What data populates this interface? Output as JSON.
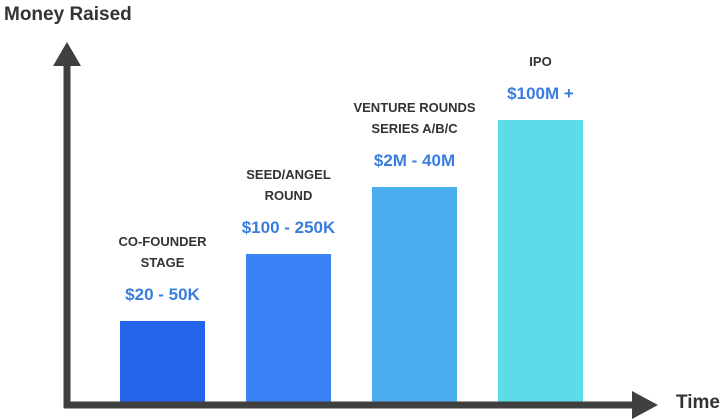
{
  "chart_data": {
    "type": "bar",
    "ylabel": "Money Raised",
    "xlabel": "Time",
    "grid": false,
    "legend": "none",
    "categories": [
      [
        "CO-FOUNDER",
        "STAGE"
      ],
      [
        "SEED/ANGEL",
        "ROUND"
      ],
      [
        "VENTURE ROUNDS",
        "SERIES A/B/C"
      ],
      [
        "IPO"
      ]
    ],
    "data_labels": [
      "$20 - 50K",
      "$100 - 250K",
      "$2M - 40M",
      "$100M +"
    ],
    "relative_heights": [
      1,
      2,
      3,
      4
    ],
    "colors": {
      "bars": [
        "#2563eb",
        "#3b82f6",
        "#4aaeee",
        "#5ddbe8"
      ],
      "value_text": "#3b7ddd",
      "axis": "#404040",
      "text": "#333333"
    }
  }
}
